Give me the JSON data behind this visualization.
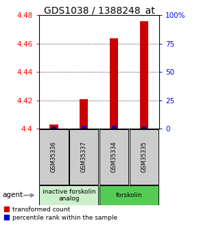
{
  "title": "GDS1038 / 1388248_at",
  "samples": [
    "GSM35336",
    "GSM35337",
    "GSM35334",
    "GSM35335"
  ],
  "red_values": [
    4.403,
    4.421,
    4.464,
    4.476
  ],
  "blue_pct": [
    2.0,
    2.5,
    2.5,
    2.0
  ],
  "ylim_left": [
    4.4,
    4.48
  ],
  "ylim_right": [
    0,
    100
  ],
  "yticks_left": [
    4.4,
    4.42,
    4.44,
    4.46,
    4.48
  ],
  "yticks_right": [
    0,
    25,
    50,
    75,
    100
  ],
  "ytick_labels_left": [
    "4.4",
    "4.42",
    "4.44",
    "4.46",
    "4.48"
  ],
  "ytick_labels_right": [
    "0",
    "25",
    "50",
    "75",
    "100%"
  ],
  "group_labels": [
    "inactive forskolin\nanalog",
    "forskolin"
  ],
  "group_colors": [
    "#ccf0cc",
    "#55cc55"
  ],
  "group_ranges": [
    [
      0,
      2
    ],
    [
      2,
      4
    ]
  ],
  "bar_color_red": "#cc0000",
  "bar_color_blue": "#0000cc",
  "bar_width": 0.28,
  "legend_red": "transformed count",
  "legend_blue": "percentile rank within the sample",
  "agent_label": "agent",
  "bg_plot": "#ffffff",
  "bg_sample_box": "#cccccc",
  "title_fontsize": 10,
  "tick_fontsize": 7.5,
  "sample_fontsize": 6,
  "group_fontsize": 6.5,
  "legend_fontsize": 6.5
}
